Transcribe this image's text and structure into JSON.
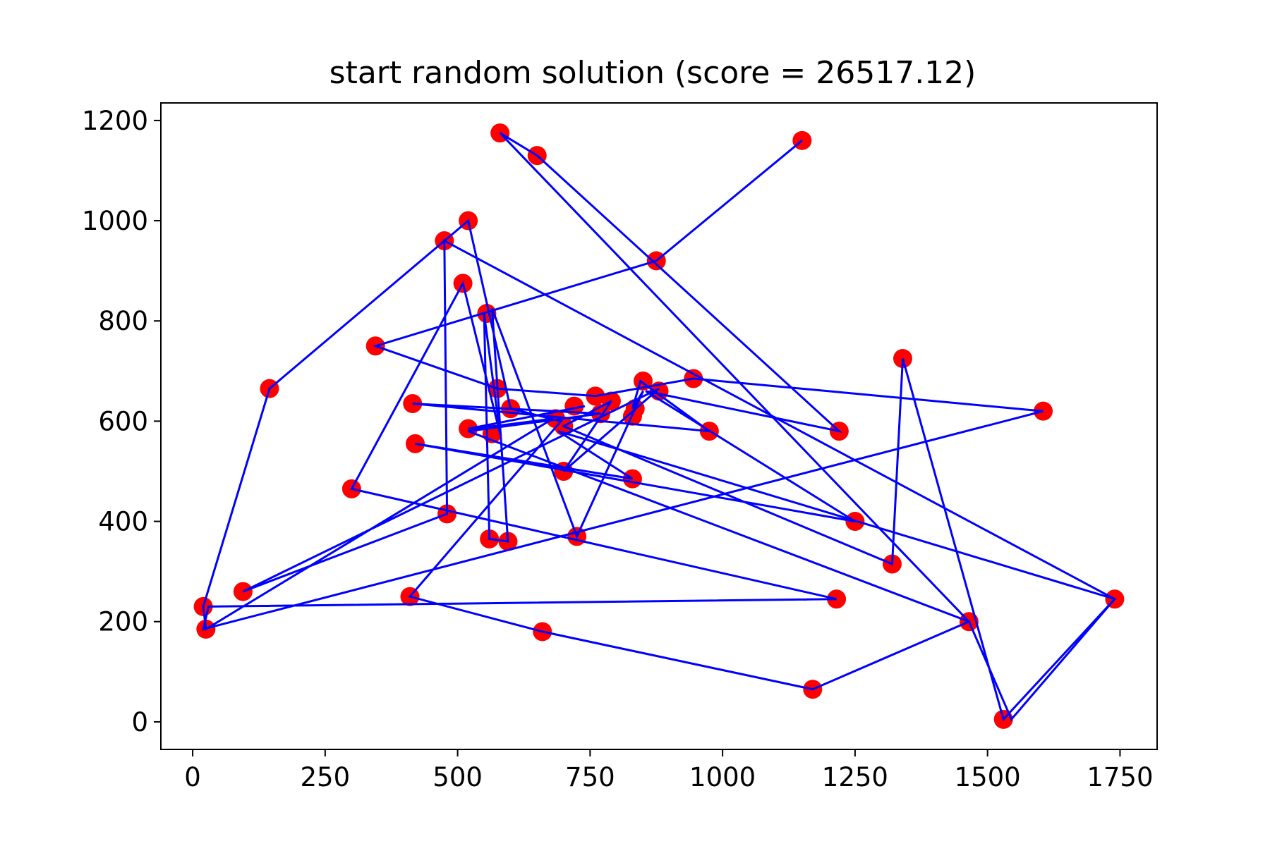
{
  "chart_data": {
    "type": "line",
    "title": "start random solution (score = 26517.12)",
    "xlabel": "",
    "ylabel": "",
    "xlim": [
      -60,
      1820
    ],
    "ylim": [
      -55,
      1235
    ],
    "xticks": [
      0,
      250,
      500,
      750,
      1000,
      1250,
      1500,
      1750
    ],
    "yticks": [
      0,
      200,
      400,
      600,
      800,
      1000,
      1200
    ],
    "grid": false,
    "colors": {
      "points": "#ff0000",
      "path": "#0000ff"
    },
    "route": [
      [
        1150,
        1160
      ],
      [
        875,
        920
      ],
      [
        345,
        750
      ],
      [
        575,
        665
      ],
      [
        760,
        650
      ],
      [
        945,
        685
      ],
      [
        1605,
        620
      ],
      [
        20,
        185
      ],
      [
        30,
        230
      ],
      [
        1215,
        245
      ],
      [
        300,
        465
      ],
      [
        510,
        875
      ],
      [
        580,
        575
      ],
      [
        550,
        815
      ],
      [
        560,
        365
      ],
      [
        595,
        360
      ],
      [
        565,
        825
      ],
      [
        725,
        370
      ],
      [
        850,
        660
      ],
      [
        830,
        625
      ],
      [
        845,
        680
      ],
      [
        975,
        580
      ],
      [
        415,
        635
      ],
      [
        770,
        615
      ],
      [
        520,
        580
      ],
      [
        1465,
        200
      ],
      [
        1545,
        5
      ],
      [
        1740,
        245
      ],
      [
        475,
        960
      ],
      [
        480,
        415
      ],
      [
        95,
        260
      ],
      [
        880,
        665
      ],
      [
        700,
        500
      ],
      [
        790,
        640
      ],
      [
        700,
        590
      ],
      [
        1320,
        315
      ],
      [
        1340,
        725
      ],
      [
        1530,
        5
      ],
      [
        1740,
        245
      ],
      [
        690,
        580
      ],
      [
        830,
        485
      ],
      [
        420,
        555
      ],
      [
        1250,
        400
      ],
      [
        855,
        660
      ],
      [
        1220,
        580
      ],
      [
        650,
        1130
      ],
      [
        580,
        1175
      ],
      [
        1465,
        200
      ],
      [
        1170,
        65
      ],
      [
        660,
        180
      ],
      [
        410,
        250
      ],
      [
        695,
        600
      ],
      [
        600,
        625
      ],
      [
        520,
        1000
      ],
      [
        145,
        665
      ],
      [
        20,
        230
      ],
      [
        25,
        185
      ],
      [
        680,
        605
      ],
      [
        570,
        590
      ],
      [
        520,
        585
      ],
      [
        740,
        630
      ]
    ],
    "points": [
      [
        1150,
        1160
      ],
      [
        875,
        920
      ],
      [
        650,
        1130
      ],
      [
        580,
        1175
      ],
      [
        520,
        1000
      ],
      [
        475,
        960
      ],
      [
        510,
        875
      ],
      [
        555,
        815
      ],
      [
        345,
        750
      ],
      [
        145,
        665
      ],
      [
        575,
        665
      ],
      [
        600,
        625
      ],
      [
        415,
        635
      ],
      [
        520,
        585
      ],
      [
        420,
        555
      ],
      [
        565,
        575
      ],
      [
        685,
        605
      ],
      [
        700,
        590
      ],
      [
        720,
        630
      ],
      [
        760,
        650
      ],
      [
        770,
        615
      ],
      [
        790,
        640
      ],
      [
        830,
        610
      ],
      [
        850,
        680
      ],
      [
        835,
        625
      ],
      [
        880,
        660
      ],
      [
        945,
        685
      ],
      [
        975,
        580
      ],
      [
        1220,
        580
      ],
      [
        1605,
        620
      ],
      [
        1340,
        725
      ],
      [
        700,
        500
      ],
      [
        830,
        485
      ],
      [
        300,
        465
      ],
      [
        480,
        415
      ],
      [
        560,
        365
      ],
      [
        595,
        360
      ],
      [
        725,
        370
      ],
      [
        1250,
        400
      ],
      [
        1320,
        315
      ],
      [
        95,
        260
      ],
      [
        20,
        230
      ],
      [
        25,
        185
      ],
      [
        410,
        250
      ],
      [
        660,
        180
      ],
      [
        1215,
        245
      ],
      [
        1465,
        200
      ],
      [
        1740,
        245
      ],
      [
        1170,
        65
      ],
      [
        1530,
        5
      ]
    ]
  }
}
